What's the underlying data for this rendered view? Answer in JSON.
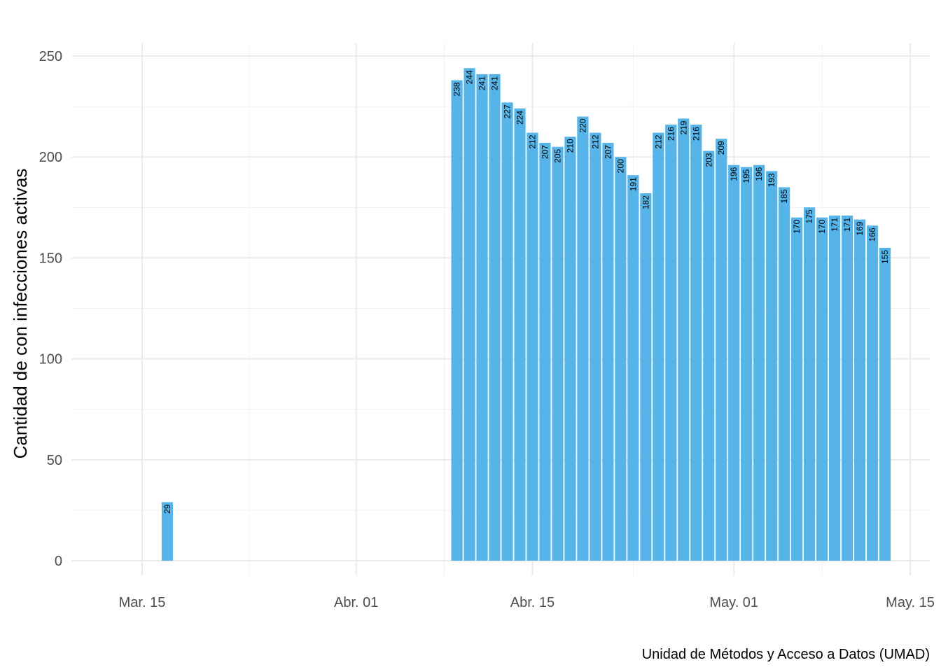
{
  "chart_data": {
    "type": "bar",
    "ylabel": "Cantidad de con infecciones activas",
    "caption": "Unidad de Métodos y Acceso a Datos (UMAD)",
    "ylim": [
      0,
      250
    ],
    "yticks": [
      0,
      50,
      100,
      150,
      200,
      250
    ],
    "xticks": [
      {
        "date": "2020-03-15",
        "label": "Mar. 15"
      },
      {
        "date": "2020-04-01",
        "label": "Abr. 01"
      },
      {
        "date": "2020-04-15",
        "label": "Abr. 15"
      },
      {
        "date": "2020-05-01",
        "label": "May. 01"
      },
      {
        "date": "2020-05-15",
        "label": "May. 15"
      }
    ],
    "xlim": [
      "2020-03-09",
      "2020-05-16"
    ],
    "grid": true,
    "bar_color": "#56B4E9",
    "bars": [
      {
        "date": "2020-03-17",
        "value": 29
      },
      {
        "date": "2020-04-09",
        "value": 238
      },
      {
        "date": "2020-04-10",
        "value": 244
      },
      {
        "date": "2020-04-11",
        "value": 241
      },
      {
        "date": "2020-04-12",
        "value": 241
      },
      {
        "date": "2020-04-13",
        "value": 227
      },
      {
        "date": "2020-04-14",
        "value": 224
      },
      {
        "date": "2020-04-15",
        "value": 212
      },
      {
        "date": "2020-04-16",
        "value": 207
      },
      {
        "date": "2020-04-17",
        "value": 205
      },
      {
        "date": "2020-04-18",
        "value": 210
      },
      {
        "date": "2020-04-19",
        "value": 220
      },
      {
        "date": "2020-04-20",
        "value": 212
      },
      {
        "date": "2020-04-21",
        "value": 207
      },
      {
        "date": "2020-04-22",
        "value": 200
      },
      {
        "date": "2020-04-23",
        "value": 191
      },
      {
        "date": "2020-04-24",
        "value": 182
      },
      {
        "date": "2020-04-25",
        "value": 212
      },
      {
        "date": "2020-04-26",
        "value": 216
      },
      {
        "date": "2020-04-27",
        "value": 219
      },
      {
        "date": "2020-04-28",
        "value": 216
      },
      {
        "date": "2020-04-29",
        "value": 203
      },
      {
        "date": "2020-04-30",
        "value": 209
      },
      {
        "date": "2020-05-01",
        "value": 196
      },
      {
        "date": "2020-05-02",
        "value": 195
      },
      {
        "date": "2020-05-03",
        "value": 196
      },
      {
        "date": "2020-05-04",
        "value": 193
      },
      {
        "date": "2020-05-05",
        "value": 185
      },
      {
        "date": "2020-05-06",
        "value": 170
      },
      {
        "date": "2020-05-07",
        "value": 175
      },
      {
        "date": "2020-05-08",
        "value": 170
      },
      {
        "date": "2020-05-09",
        "value": 171
      },
      {
        "date": "2020-05-10",
        "value": 171
      },
      {
        "date": "2020-05-11",
        "value": 169
      },
      {
        "date": "2020-05-12",
        "value": 166
      },
      {
        "date": "2020-05-13",
        "value": 155
      }
    ]
  }
}
